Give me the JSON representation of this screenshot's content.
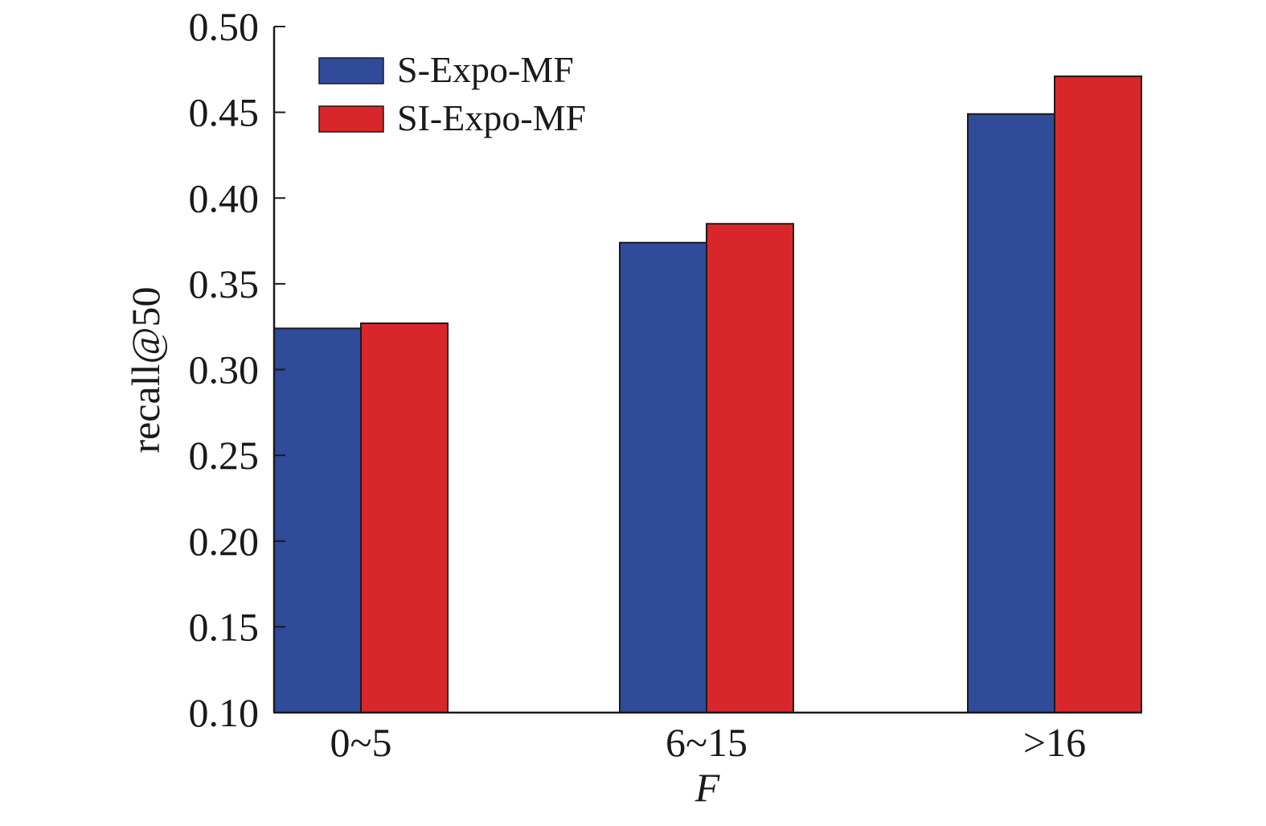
{
  "chart_data": {
    "type": "bar",
    "title": "",
    "xlabel": "F",
    "ylabel": "recall@50",
    "categories": [
      "0~5",
      "6~15",
      ">16"
    ],
    "ylim": [
      0.1,
      0.5
    ],
    "yticks": [
      "0.10",
      "0.15",
      "0.20",
      "0.25",
      "0.30",
      "0.35",
      "0.40",
      "0.45",
      "0.50"
    ],
    "grid": false,
    "legend_position": "top-left",
    "series": [
      {
        "name": "S-Expo-MF",
        "color": "#2f4b9a",
        "values": [
          0.324,
          0.374,
          0.449
        ]
      },
      {
        "name": "SI-Expo-MF",
        "color": "#d9262a",
        "values": [
          0.327,
          0.385,
          0.471
        ]
      }
    ]
  }
}
